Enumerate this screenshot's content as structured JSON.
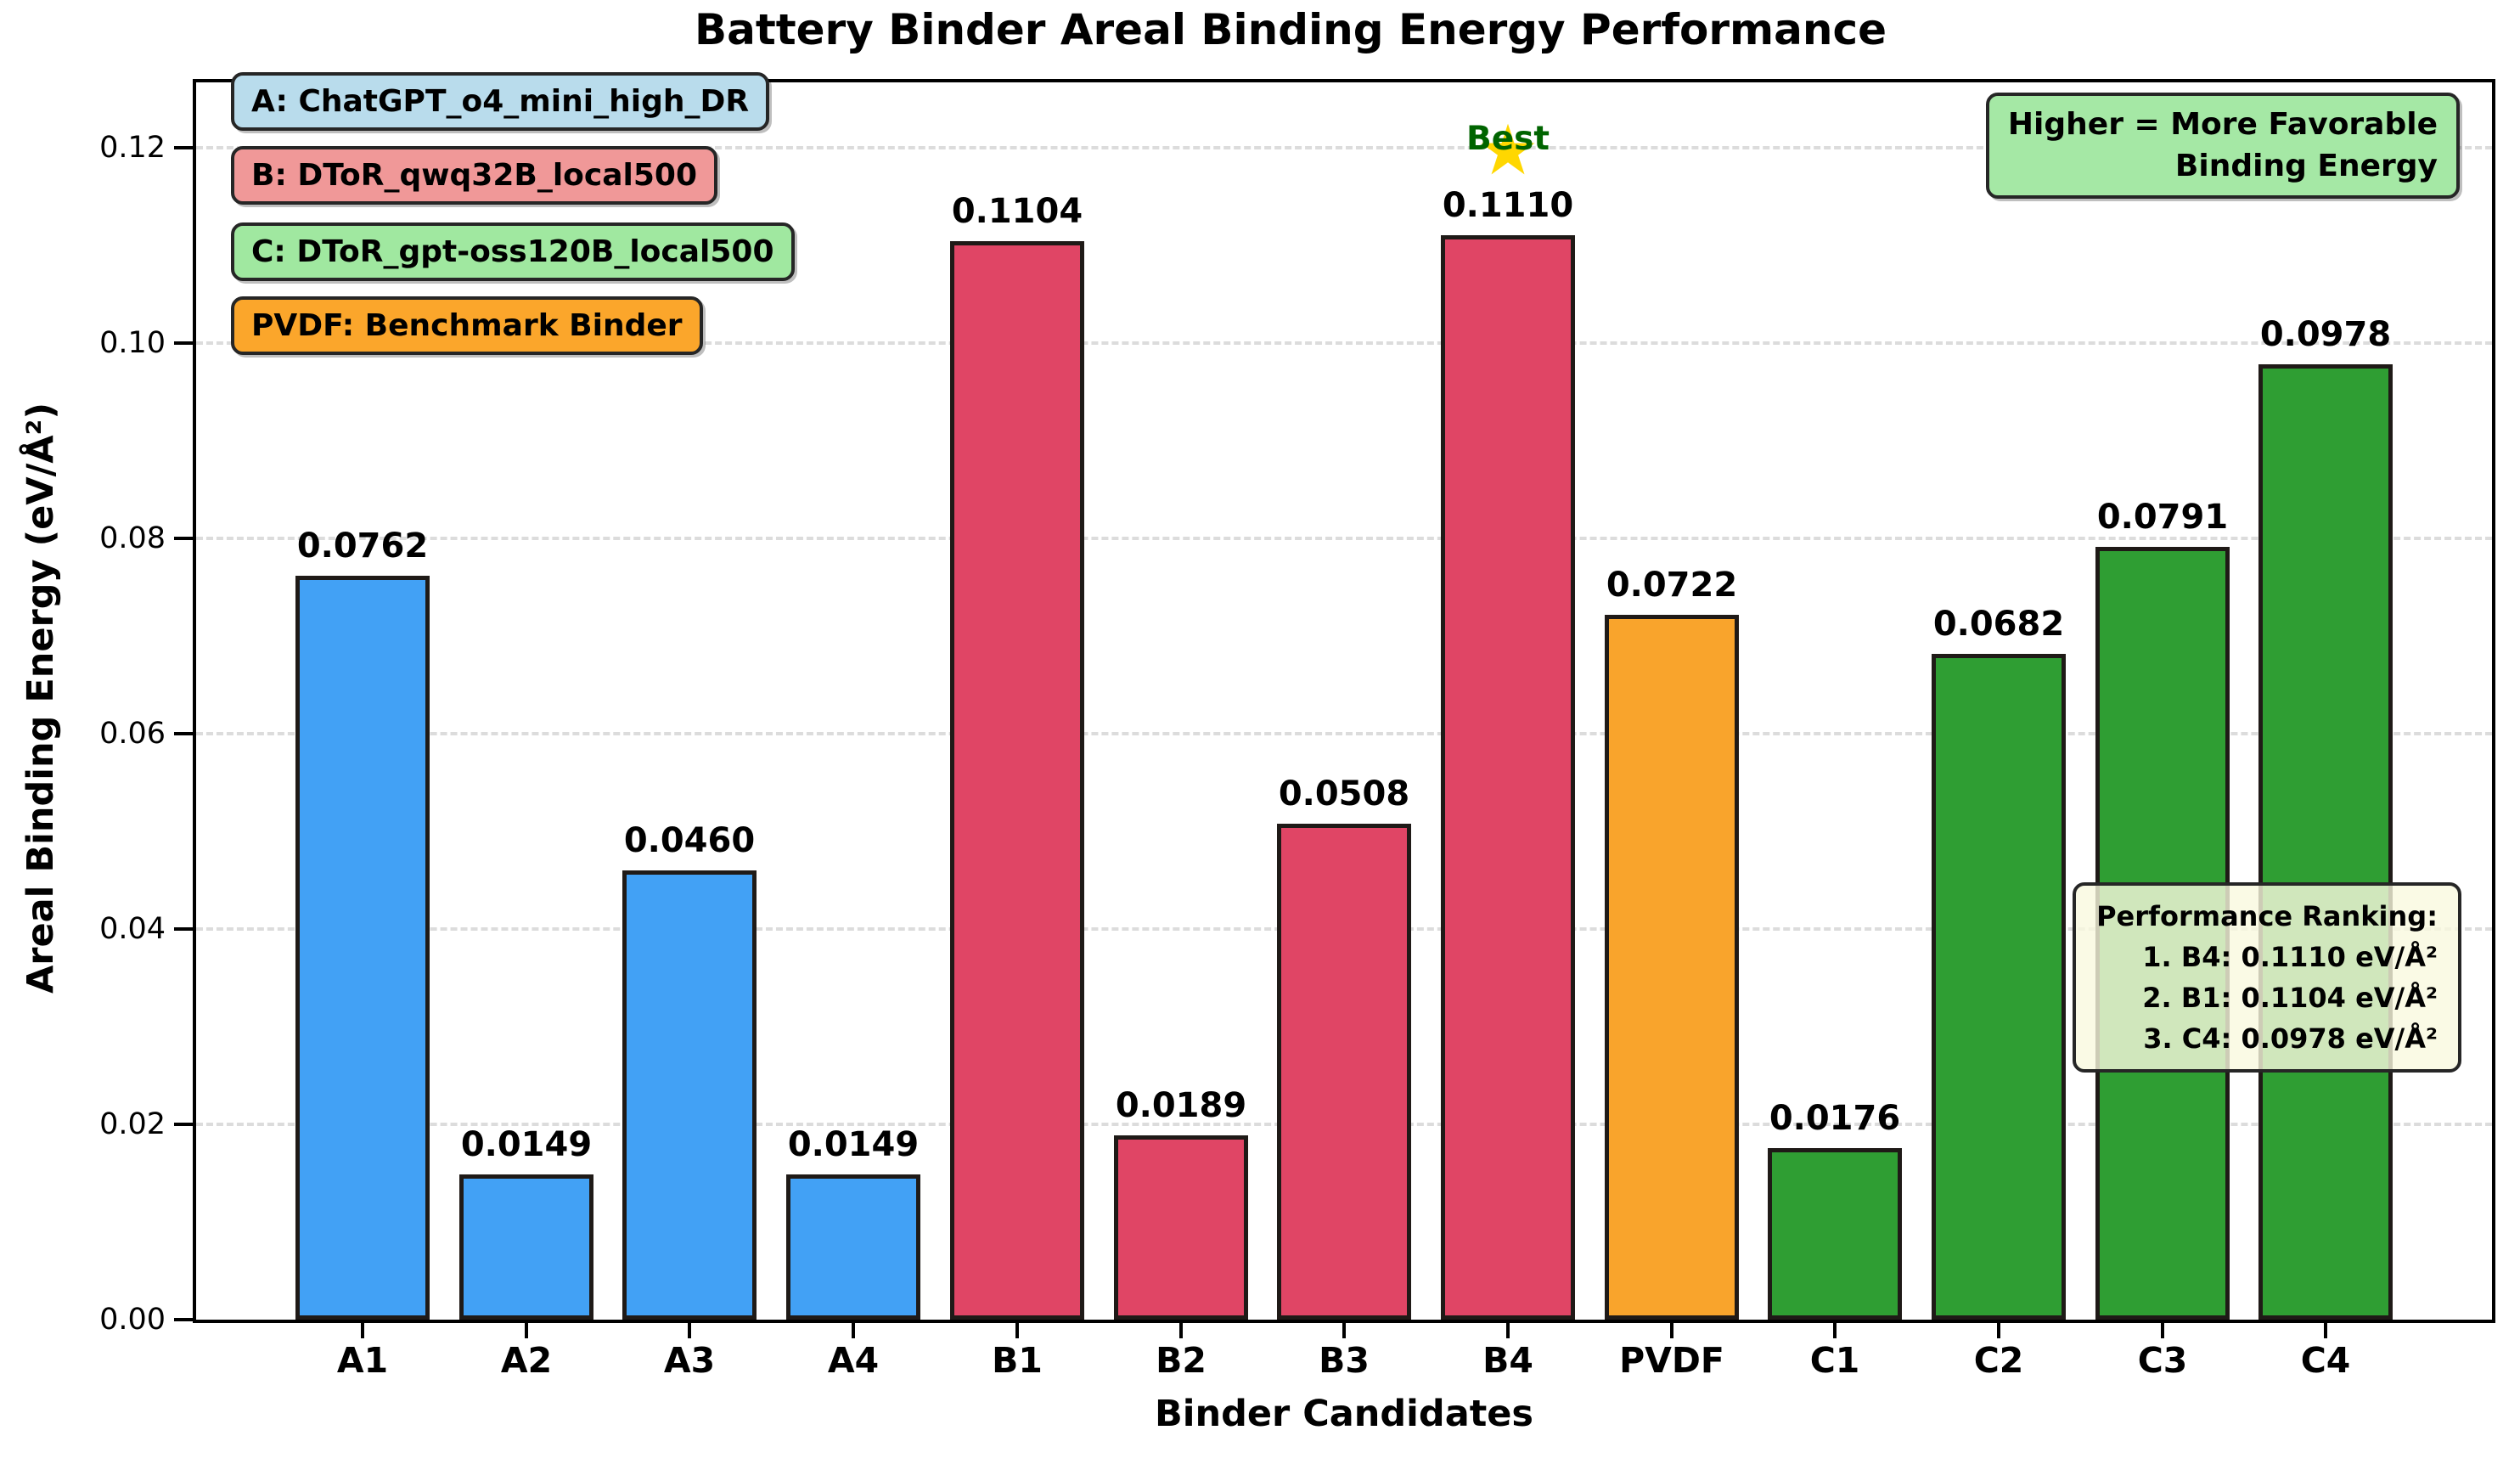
{
  "title": "Battery Binder Areal Binding Energy Performance",
  "legend": [
    {
      "label": "A: ChatGPT_o4_mini_high_DR",
      "fill": "#B9DCEC"
    },
    {
      "label": "B: DToR_qwq32B_local500",
      "fill": "#F09898"
    },
    {
      "label": "C: DToR_gpt-oss120B_local500",
      "fill": "#A0E8A0"
    },
    {
      "label": "PVDF: Benchmark Binder",
      "fill": "#FBA62B"
    }
  ],
  "note_box": {
    "line1": "Higher = More Favorable",
    "line2": "Binding Energy",
    "fill": "#A5E8A5"
  },
  "ranking_box": {
    "title": "Performance Ranking:",
    "entries": [
      "1. B4: 0.1110 eV/Å²",
      "2. B1: 0.1104 eV/Å²",
      "3. C4: 0.0978 eV/Å²"
    ],
    "fill": "rgba(249,249,222,0.8)"
  },
  "annotation": {
    "label": "Best",
    "category": "B4",
    "label_color": "#006400",
    "star_color": "#FFD700",
    "star_glyph": "★"
  },
  "chart_data": {
    "type": "bar",
    "title": "Battery Binder Areal Binding Energy Performance",
    "xlabel": "Binder Candidates",
    "ylabel": "Areal Binding Energy (eV/Å²)",
    "categories": [
      "A1",
      "A2",
      "A3",
      "A4",
      "B1",
      "B2",
      "B3",
      "B4",
      "PVDF",
      "C1",
      "C2",
      "C3",
      "C4"
    ],
    "values": [
      0.0762,
      0.0149,
      0.046,
      0.0149,
      0.1104,
      0.0189,
      0.0508,
      0.111,
      0.0722,
      0.0176,
      0.0682,
      0.0791,
      0.0978
    ],
    "value_labels": [
      "0.0762",
      "0.0149",
      "0.0460",
      "0.0149",
      "0.1104",
      "0.0189",
      "0.0508",
      "0.1110",
      "0.0722",
      "0.0176",
      "0.0682",
      "0.0791",
      "0.0978"
    ],
    "bar_colors": [
      "#42A1F5",
      "#42A1F5",
      "#42A1F5",
      "#42A1F5",
      "#E04565",
      "#E04565",
      "#E04565",
      "#E04565",
      "#F9A42C",
      "#2F9E33",
      "#2F9E33",
      "#2F9E33",
      "#2F9E33"
    ],
    "series_groups": [
      {
        "name": "A: ChatGPT_o4_mini_high_DR",
        "categories": [
          "A1",
          "A2",
          "A3",
          "A4"
        ],
        "color": "#42A1F5"
      },
      {
        "name": "B: DToR_qwq32B_local500",
        "categories": [
          "B1",
          "B2",
          "B3",
          "B4"
        ],
        "color": "#E04565"
      },
      {
        "name": "PVDF: Benchmark Binder",
        "categories": [
          "PVDF"
        ],
        "color": "#F9A42C"
      },
      {
        "name": "C: DToR_gpt-oss120B_local500",
        "categories": [
          "C1",
          "C2",
          "C3",
          "C4"
        ],
        "color": "#2F9E33"
      }
    ],
    "yticks": [
      0.0,
      0.02,
      0.04,
      0.06,
      0.08,
      0.1,
      0.12
    ],
    "ytick_labels": [
      "0.00",
      "0.02",
      "0.04",
      "0.06",
      "0.08",
      "0.10",
      "0.12"
    ],
    "ylim": [
      0,
      0.1274
    ],
    "grid": "horizontal dashed",
    "legend_position": "upper-left stacked boxes"
  }
}
